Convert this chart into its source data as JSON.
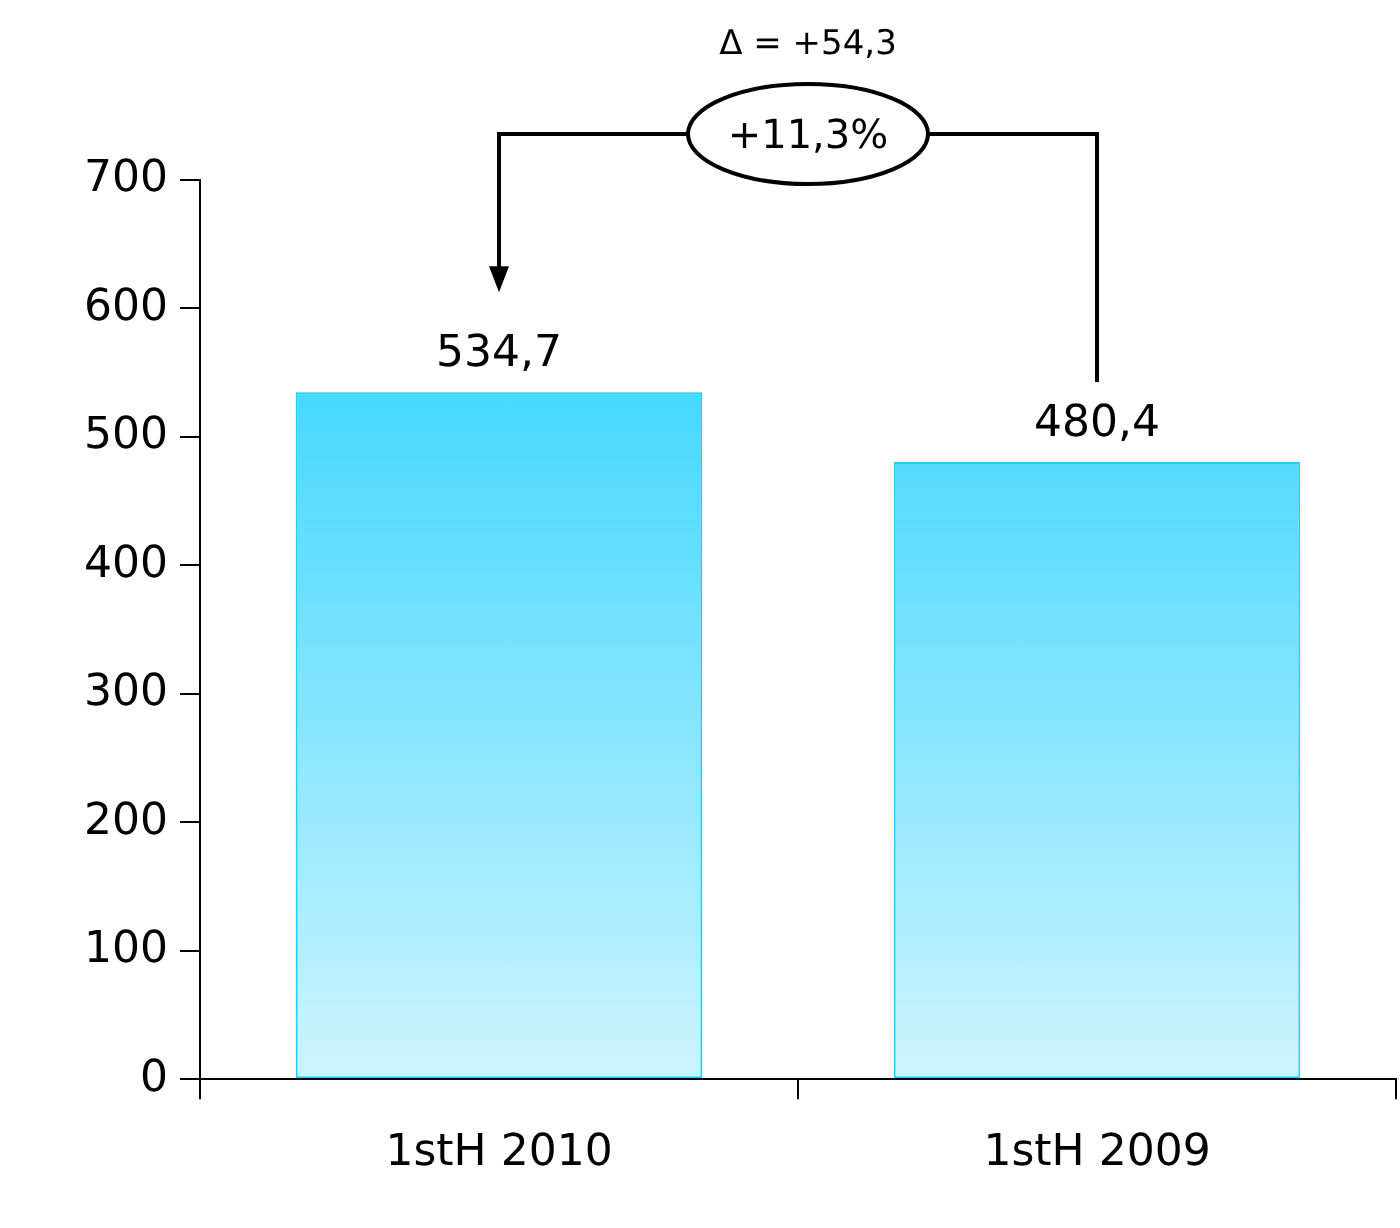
{
  "chart_data": {
    "type": "bar",
    "categories": [
      "1stH 2010",
      "1stH 2009"
    ],
    "values": [
      534.7,
      480.4
    ],
    "value_labels": [
      "534,7",
      "480,4"
    ],
    "color": "#1ccfff",
    "ylim": [
      0,
      700
    ],
    "yticks": [
      0,
      100,
      200,
      300,
      400,
      500,
      600,
      700
    ],
    "grid": false,
    "legend": false,
    "annotations": [
      "Δ = +54,3",
      "+11,3%"
    ]
  }
}
